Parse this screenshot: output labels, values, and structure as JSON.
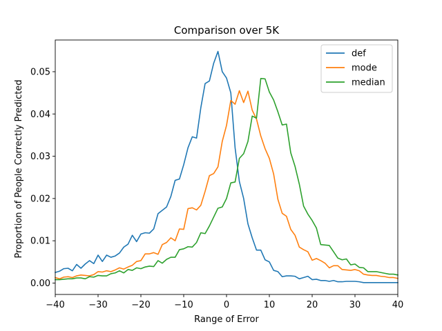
{
  "chart_data": {
    "type": "line",
    "title": "Comparison over 5K",
    "xlabel": "Range of Error",
    "ylabel": "Proportion of People Correctly Predicted",
    "xlim": [
      -40,
      40
    ],
    "ylim": [
      -0.0027,
      0.0575
    ],
    "xticks": [
      -40,
      -30,
      -20,
      -10,
      0,
      10,
      20,
      30,
      40
    ],
    "xtick_labels": [
      "−40",
      "−30",
      "−20",
      "−10",
      "0",
      "10",
      "20",
      "30",
      "40"
    ],
    "yticks": [
      0.0,
      0.01,
      0.02,
      0.03,
      0.04,
      0.05
    ],
    "ytick_labels": [
      "0.00",
      "0.01",
      "0.02",
      "0.03",
      "0.04",
      "0.05"
    ],
    "grid": false,
    "legend": "top-right",
    "series": [
      {
        "name": "def",
        "color": "#1f77b4",
        "x": [
          -40,
          -39,
          -38,
          -37,
          -36,
          -35,
          -34,
          -33,
          -32,
          -31,
          -30,
          -29,
          -28,
          -27,
          -26,
          -25,
          -24,
          -23,
          -22,
          -21,
          -20,
          -19,
          -18,
          -17,
          -16,
          -15,
          -14,
          -13,
          -12,
          -11,
          -10,
          -9,
          -8,
          -7,
          -6,
          -5,
          -4,
          -3,
          -2,
          -1,
          0,
          1,
          2,
          3,
          4,
          5,
          6,
          7,
          8,
          9,
          10,
          11,
          12,
          13,
          14,
          15,
          16,
          17,
          18,
          19,
          20,
          21,
          22,
          23,
          24,
          25,
          26,
          27,
          28,
          29,
          30,
          31,
          32,
          33,
          34,
          35,
          36,
          37,
          38,
          39,
          40
        ],
        "y": [
          0.0025,
          0.0028,
          0.0034,
          0.0035,
          0.0029,
          0.0044,
          0.0035,
          0.0045,
          0.0053,
          0.0046,
          0.0066,
          0.0051,
          0.0066,
          0.0061,
          0.0064,
          0.0071,
          0.0085,
          0.0092,
          0.0113,
          0.0098,
          0.0116,
          0.0119,
          0.0118,
          0.0128,
          0.0164,
          0.0172,
          0.018,
          0.0205,
          0.0243,
          0.0246,
          0.028,
          0.032,
          0.0346,
          0.0343,
          0.0415,
          0.0472,
          0.0478,
          0.052,
          0.0548,
          0.05,
          0.0485,
          0.045,
          0.032,
          0.024,
          0.02,
          0.014,
          0.0107,
          0.0078,
          0.0078,
          0.0055,
          0.005,
          0.003,
          0.0027,
          0.0015,
          0.0017,
          0.0017,
          0.0016,
          0.001,
          0.0013,
          0.0016,
          0.0008,
          0.0009,
          0.0006,
          0.0006,
          0.0004,
          0.0006,
          0.0003,
          0.0003,
          0.0004,
          0.0004,
          0.0004,
          0.0003,
          0.0001,
          0.0001,
          0.0001,
          0.0001,
          0.0001,
          0.0001,
          0.0001,
          0.0001,
          0.0001
        ]
      },
      {
        "name": "mode",
        "color": "#ff7f0e",
        "x": [
          -40,
          -39,
          -38,
          -37,
          -36,
          -35,
          -34,
          -33,
          -32,
          -31,
          -30,
          -29,
          -28,
          -27,
          -26,
          -25,
          -24,
          -23,
          -22,
          -21,
          -20,
          -19,
          -18,
          -17,
          -16,
          -15,
          -14,
          -13,
          -12,
          -11,
          -10,
          -9,
          -8,
          -7,
          -6,
          -5,
          -4,
          -3,
          -2,
          -1,
          0,
          1,
          2,
          3,
          4,
          5,
          6,
          7,
          8,
          9,
          10,
          11,
          12,
          13,
          14,
          15,
          16,
          17,
          18,
          19,
          20,
          21,
          22,
          23,
          24,
          25,
          26,
          27,
          28,
          29,
          30,
          31,
          32,
          33,
          34,
          35,
          36,
          37,
          38,
          39,
          40
        ],
        "y": [
          0.0013,
          0.001,
          0.0014,
          0.0015,
          0.0013,
          0.0017,
          0.0019,
          0.0018,
          0.0017,
          0.002,
          0.0027,
          0.0026,
          0.0029,
          0.0027,
          0.0031,
          0.0036,
          0.0033,
          0.0038,
          0.0042,
          0.0051,
          0.0053,
          0.0069,
          0.0069,
          0.0072,
          0.0068,
          0.0091,
          0.0096,
          0.0107,
          0.01,
          0.0128,
          0.0127,
          0.0176,
          0.0178,
          0.0173,
          0.0184,
          0.0217,
          0.0254,
          0.0259,
          0.0275,
          0.0335,
          0.0373,
          0.0432,
          0.0423,
          0.0455,
          0.0427,
          0.0454,
          0.0409,
          0.0388,
          0.0348,
          0.0318,
          0.0295,
          0.0258,
          0.0198,
          0.0165,
          0.0158,
          0.0127,
          0.0113,
          0.0085,
          0.0079,
          0.0074,
          0.0054,
          0.0058,
          0.0053,
          0.0047,
          0.0036,
          0.0041,
          0.0041,
          0.0032,
          0.0031,
          0.003,
          0.0032,
          0.0029,
          0.0021,
          0.0019,
          0.0018,
          0.0018,
          0.0016,
          0.0015,
          0.0013,
          0.0013,
          0.0011
        ]
      },
      {
        "name": "median",
        "color": "#2ca02c",
        "x": [
          -40,
          -39,
          -38,
          -37,
          -36,
          -35,
          -34,
          -33,
          -32,
          -31,
          -30,
          -29,
          -28,
          -27,
          -26,
          -25,
          -24,
          -23,
          -22,
          -21,
          -20,
          -19,
          -18,
          -17,
          -16,
          -15,
          -14,
          -13,
          -12,
          -11,
          -10,
          -9,
          -8,
          -7,
          -6,
          -5,
          -4,
          -3,
          -2,
          -1,
          0,
          1,
          2,
          3,
          4,
          5,
          6,
          7,
          8,
          9,
          10,
          11,
          12,
          13,
          14,
          15,
          16,
          17,
          18,
          19,
          20,
          21,
          22,
          23,
          24,
          25,
          26,
          27,
          28,
          29,
          30,
          31,
          32,
          33,
          34,
          35,
          36,
          37,
          38,
          39,
          40
        ],
        "y": [
          0.0008,
          0.0008,
          0.0009,
          0.001,
          0.001,
          0.0012,
          0.0012,
          0.001,
          0.0015,
          0.0014,
          0.0018,
          0.0017,
          0.0017,
          0.0022,
          0.0024,
          0.0029,
          0.0024,
          0.0032,
          0.003,
          0.0036,
          0.0034,
          0.0038,
          0.004,
          0.0039,
          0.0053,
          0.0047,
          0.0056,
          0.0061,
          0.0061,
          0.0079,
          0.0081,
          0.0086,
          0.0085,
          0.0096,
          0.0119,
          0.0117,
          0.0135,
          0.0156,
          0.0177,
          0.018,
          0.02,
          0.0237,
          0.0239,
          0.0295,
          0.0306,
          0.0335,
          0.0395,
          0.039,
          0.0484,
          0.0483,
          0.0452,
          0.0433,
          0.0405,
          0.0374,
          0.0376,
          0.0308,
          0.0276,
          0.0234,
          0.0182,
          0.0163,
          0.0148,
          0.013,
          0.0091,
          0.009,
          0.0089,
          0.0074,
          0.0059,
          0.0055,
          0.0057,
          0.0043,
          0.0045,
          0.0037,
          0.0036,
          0.0027,
          0.0027,
          0.0027,
          0.0025,
          0.0023,
          0.0021,
          0.0021,
          0.0019
        ]
      }
    ]
  }
}
